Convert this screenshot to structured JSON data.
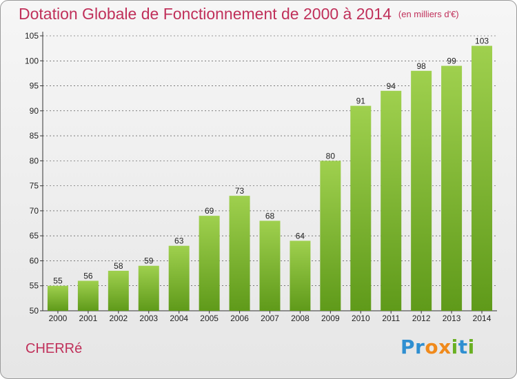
{
  "header": {
    "title": "Dotation Globale de Fonctionnement de 2000 à 2014",
    "subtitle": "(en milliers d'€)"
  },
  "footer": {
    "town": "CHERRé",
    "logo": {
      "text": "Proxiti",
      "colors": [
        "#2f8fd1",
        "#f08a1c",
        "#6ab023"
      ]
    }
  },
  "colors": {
    "title": "#c0305a",
    "bar_top": "#9fd04e",
    "bar_bottom": "#5f9a1a",
    "grid": "#333333"
  },
  "chart_data": {
    "type": "bar",
    "categories": [
      "2000",
      "2001",
      "2002",
      "2003",
      "2004",
      "2005",
      "2006",
      "2007",
      "2008",
      "2009",
      "2010",
      "2011",
      "2012",
      "2013",
      "2014"
    ],
    "values": [
      55,
      56,
      58,
      59,
      63,
      69,
      73,
      68,
      64,
      80,
      91,
      94,
      98,
      99,
      103
    ],
    "title": "Dotation Globale de Fonctionnement de 2000 à 2014",
    "subtitle": "(en milliers d'€)",
    "xlabel": "",
    "ylabel": "",
    "ylim": [
      50,
      105
    ],
    "yticks": [
      50,
      55,
      60,
      65,
      70,
      75,
      80,
      85,
      90,
      95,
      100,
      105
    ],
    "grid": "horizontal dashed",
    "legend": "none",
    "data_labels": true
  }
}
